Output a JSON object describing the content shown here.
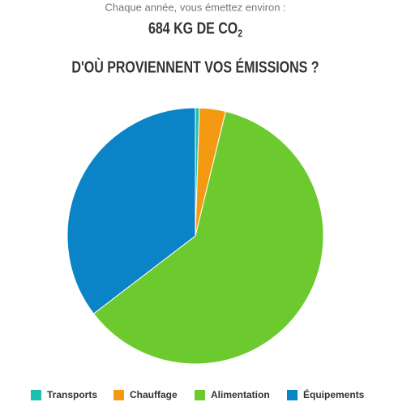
{
  "header": {
    "intro": "Chaque année, vous émettez environ :",
    "total": "684 KG DE CO",
    "total_subscript": "2"
  },
  "chart_data": {
    "type": "pie",
    "title": "D'OÙ PROVIENNENT VOS ÉMISSIONS ?",
    "categories": [
      "Transports",
      "Chauffage",
      "Alimentation",
      "Équipements"
    ],
    "values": [
      0.5,
      3.3,
      60.8,
      35.4
    ],
    "colors": [
      "#1fbfb0",
      "#f39a12",
      "#6cc92e",
      "#0a84c6"
    ],
    "legend": "bottom"
  }
}
